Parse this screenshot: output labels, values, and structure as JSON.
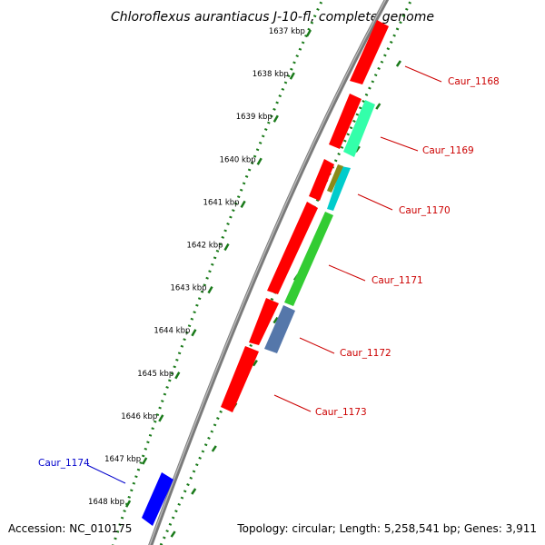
{
  "title": "Chloroflexus aurantiacus J-10-fl, complete genome",
  "accession_text": "Accession: NC_010175",
  "summary_text": "Topology: circular; Length: 5,258,541 bp; Genes: 3,911",
  "kbp_ticks": [
    "1637 kbp",
    "1638 kbp",
    "1639 kbp",
    "1640 kbp",
    "1641 kbp",
    "1642 kbp",
    "1643 kbp",
    "1644 kbp",
    "1645 kbp",
    "1646 kbp",
    "1647 kbp",
    "1648 kbp"
  ],
  "genes": [
    {
      "name": "Caur_1168",
      "color": "#cc0000"
    },
    {
      "name": "Caur_1169",
      "color": "#cc0000"
    },
    {
      "name": "Caur_1170",
      "color": "#cc0000"
    },
    {
      "name": "Caur_1171",
      "color": "#cc0000"
    },
    {
      "name": "Caur_1172",
      "color": "#cc0000"
    },
    {
      "name": "Caur_1173",
      "color": "#cc0000"
    },
    {
      "name": "Caur_1174",
      "color": "#0000cc"
    }
  ],
  "colors": {
    "forward_feature": "#ff0000",
    "reverse_feature": "#0000ff",
    "backbone": "#808080",
    "gc_dots": "#1a7a1a",
    "cog_cyan_green": "#33ffaa",
    "cog_cyan": "#00cccc",
    "cog_olive": "#8a8a1a",
    "cog_green": "#33cc33",
    "cog_steelblue": "#5577aa"
  }
}
